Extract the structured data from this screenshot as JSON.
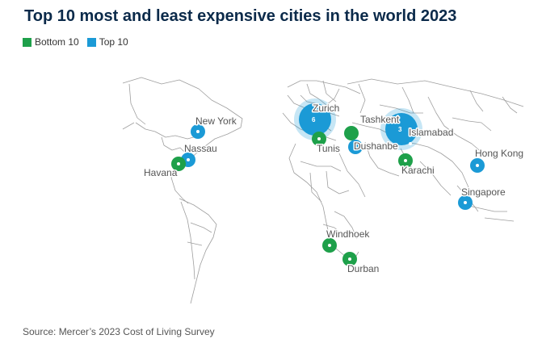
{
  "title": "Top 10 most and least expensive cities in the world 2023",
  "legend": {
    "items": [
      {
        "label": "Bottom 10",
        "color": "#1ea04a"
      },
      {
        "label": "Top 10",
        "color": "#1b9ad6"
      }
    ]
  },
  "source": "Source: Mercer’s 2023 Cost of Living Survey",
  "cities": [
    {
      "name": "New York",
      "group": "Top 10"
    },
    {
      "name": "Nassau",
      "group": "Top 10"
    },
    {
      "name": "Havana",
      "group": "Bottom 10"
    },
    {
      "name": "Zurich",
      "group": "Top 10"
    },
    {
      "name": "Tunis",
      "group": "Bottom 10"
    },
    {
      "name": "Tashkent",
      "group": "Bottom 10"
    },
    {
      "name": "Dushanbe",
      "group": "Top 10"
    },
    {
      "name": "Islamabad",
      "group": "Bottom 10"
    },
    {
      "name": "Karachi",
      "group": "Bottom 10"
    },
    {
      "name": "Hong Kong",
      "group": "Top 10"
    },
    {
      "name": "Singapore",
      "group": "Top 10"
    },
    {
      "name": "Windhoek",
      "group": "Bottom 10"
    },
    {
      "name": "Durban",
      "group": "Bottom 10"
    }
  ],
  "clusters": [
    {
      "count": "6",
      "color": "#1b9ad6"
    },
    {
      "count": "3",
      "color": "#1b9ad6"
    }
  ]
}
